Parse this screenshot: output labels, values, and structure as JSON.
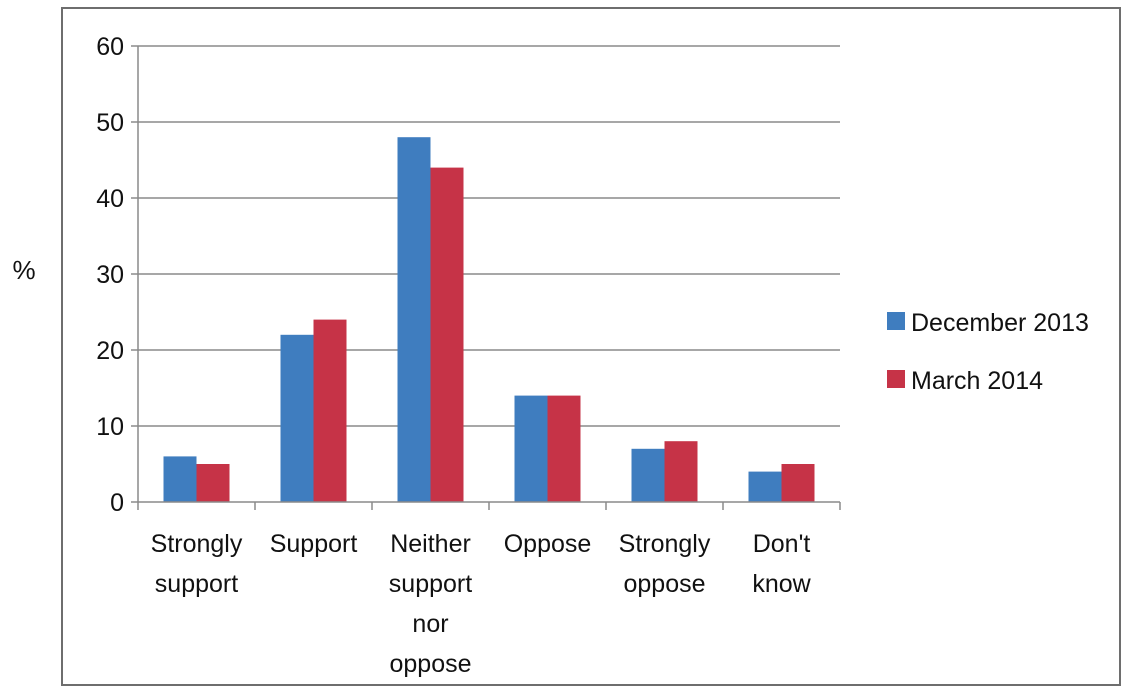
{
  "chart_data": {
    "type": "bar",
    "title": "",
    "xlabel": "",
    "ylabel": "%",
    "ylim": [
      0,
      60
    ],
    "yticks": [
      0,
      10,
      20,
      30,
      40,
      50,
      60
    ],
    "grid": true,
    "legend_position": "right",
    "categories": [
      [
        "Strongly",
        "support"
      ],
      [
        "Support"
      ],
      [
        "Neither",
        "support",
        "nor",
        "oppose"
      ],
      [
        "Oppose"
      ],
      [
        "Strongly",
        "oppose"
      ],
      [
        "Don't",
        "know"
      ]
    ],
    "series": [
      {
        "name": "December 2013",
        "color": "#3f7dbf",
        "values": [
          6,
          22,
          48,
          14,
          7,
          4
        ]
      },
      {
        "name": "March 2014",
        "color": "#c63347",
        "values": [
          5,
          24,
          44,
          14,
          8,
          5
        ]
      }
    ]
  }
}
